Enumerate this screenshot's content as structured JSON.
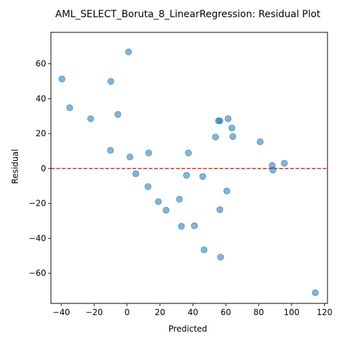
{
  "chart_data": {
    "type": "scatter",
    "title": "AML_SELECT_Boruta_8_LinearRegression: Residual Plot",
    "xlabel": "Predicted",
    "ylabel": "Residual",
    "xlim": [
      -46.3,
      121.8
    ],
    "ylim": [
      -77.3,
      78.0
    ],
    "xticks": [
      -40,
      -20,
      0,
      20,
      40,
      60,
      80,
      100,
      120
    ],
    "yticks": [
      -60,
      -40,
      -20,
      0,
      20,
      40,
      60
    ],
    "xtick_labels": [
      "−40",
      "−20",
      "0",
      "20",
      "40",
      "60",
      "80",
      "100",
      "120"
    ],
    "ytick_labels": [
      "−60",
      "−40",
      "−20",
      "0",
      "20",
      "40",
      "60"
    ],
    "grid": false,
    "reference_line": {
      "y": 0,
      "style": "dashed",
      "color": "#d62728"
    },
    "point_color": "#1f77b4",
    "points": [
      {
        "x": 0.9,
        "y": 66.8
      },
      {
        "x": -39.6,
        "y": 51.3
      },
      {
        "x": -9.9,
        "y": 49.9
      },
      {
        "x": -34.9,
        "y": 34.8
      },
      {
        "x": -5.6,
        "y": 31.0
      },
      {
        "x": -22.1,
        "y": 28.5
      },
      {
        "x": 61.4,
        "y": 28.5
      },
      {
        "x": 55.6,
        "y": 27.3
      },
      {
        "x": 56.4,
        "y": 27.3
      },
      {
        "x": 63.7,
        "y": 23.2
      },
      {
        "x": 53.7,
        "y": 18.0
      },
      {
        "x": 64.3,
        "y": 18.3
      },
      {
        "x": 80.9,
        "y": 15.3
      },
      {
        "x": -10.1,
        "y": 10.4
      },
      {
        "x": 13.1,
        "y": 8.9
      },
      {
        "x": 37.3,
        "y": 8.9
      },
      {
        "x": 1.7,
        "y": 6.6
      },
      {
        "x": 95.6,
        "y": 3.0
      },
      {
        "x": 88.2,
        "y": 1.7
      },
      {
        "x": 88.6,
        "y": -0.9
      },
      {
        "x": 5.3,
        "y": -3.0
      },
      {
        "x": 36.1,
        "y": -3.9
      },
      {
        "x": 46.0,
        "y": -4.6
      },
      {
        "x": 12.7,
        "y": -10.4
      },
      {
        "x": 60.6,
        "y": -12.9
      },
      {
        "x": 31.8,
        "y": -17.6
      },
      {
        "x": 19.0,
        "y": -19.0
      },
      {
        "x": 23.7,
        "y": -23.9
      },
      {
        "x": 56.4,
        "y": -23.6
      },
      {
        "x": 33.0,
        "y": -33.1
      },
      {
        "x": 40.9,
        "y": -32.8
      },
      {
        "x": 46.8,
        "y": -46.6
      },
      {
        "x": 56.8,
        "y": -50.8
      },
      {
        "x": 114.4,
        "y": -71.2
      }
    ]
  }
}
